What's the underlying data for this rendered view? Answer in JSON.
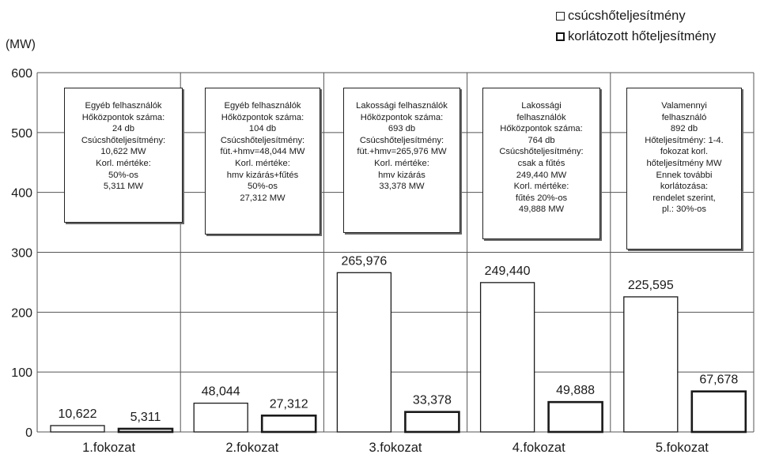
{
  "chart_data": {
    "type": "bar",
    "ylabel": "(MW)",
    "ylim": [
      0,
      600
    ],
    "yticks": [
      "0",
      "100",
      "200",
      "300",
      "400",
      "500",
      "600"
    ],
    "grid": true,
    "legend_position": "top-right",
    "categories": [
      "1.fokozat",
      "2.fokozat",
      "3.fokozat",
      "4.fokozat",
      "5.fokozat"
    ],
    "series": [
      {
        "name": "csúcshőteljesítmény",
        "values": [
          10.622,
          48.044,
          265.976,
          249.44,
          225.595
        ],
        "labels": [
          "10,622",
          "48,044",
          "265,976",
          "249,440",
          "225,595"
        ]
      },
      {
        "name": "korlátozott hőteljesítmény",
        "values": [
          5.311,
          27.312,
          33.378,
          49.888,
          67.678
        ],
        "labels": [
          "5,311",
          "27,312",
          "33,378",
          "49,888",
          "67,678"
        ]
      }
    ],
    "annotations": [
      [
        "Egyéb felhasználók",
        "Hőközpontok száma:",
        "24 db",
        "Csúcshőteljesítmény:",
        "10,622 MW",
        "Korl. mértéke:",
        "50%-os",
        "5,311 MW"
      ],
      [
        "Egyéb felhasználók",
        "Hőközpontok száma:",
        "104 db",
        "Csúcshőteljesítmény:",
        "füt.+hmv=48,044 MW",
        "Korl. mértéke:",
        "hmv kizárás+fűtés",
        "50%-os",
        "27,312 MW"
      ],
      [
        "Lakossági felhasználók",
        "Hőközpontok száma:",
        "693 db",
        "Csúcshőteljesítmény:",
        "füt.+hmv=265,976 MW",
        "Korl. mértéke:",
        "hmv kizárás",
        "33,378 MW"
      ],
      [
        "Lakossági",
        "felhasználók",
        "Hőközpontok száma:",
        "764 db",
        "Csúcshőteljesítmény:",
        "csak a fűtés",
        "249,440 MW",
        "Korl. mértéke:",
        "fűtés 20%-os",
        "49,888 MW"
      ],
      [
        "Valamennyi",
        "felhasználó",
        "892 db",
        "Hőteljesítmény: 1-4.",
        "fokozat korl.",
        "hőteljesítmény MW",
        "Ennek további",
        "korlátozása:",
        "rendelet szerint,",
        "pl.: 30%-os"
      ]
    ],
    "colors": {
      "bar_fill": "#ffffff",
      "bar_stroke": "#1a1a1a",
      "grid": "#555555"
    }
  }
}
